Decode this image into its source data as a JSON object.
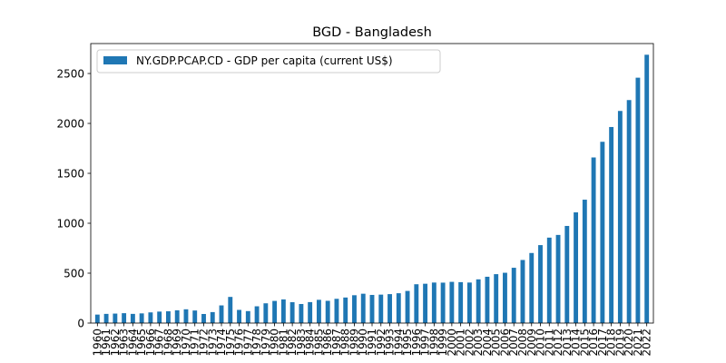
{
  "chart_data": {
    "type": "bar",
    "title": "BGD - Bangladesh",
    "xlabel": "",
    "ylabel": "",
    "ylim": [
      0,
      2800
    ],
    "yticks": [
      0,
      500,
      1000,
      1500,
      2000,
      2500
    ],
    "grid": false,
    "legend": "upper-left",
    "categories": [
      "1960",
      "1961",
      "1962",
      "1963",
      "1964",
      "1965",
      "1966",
      "1967",
      "1968",
      "1969",
      "1970",
      "1971",
      "1972",
      "1973",
      "1974",
      "1975",
      "1976",
      "1977",
      "1978",
      "1979",
      "1980",
      "1981",
      "1982",
      "1983",
      "1984",
      "1985",
      "1986",
      "1987",
      "1988",
      "1989",
      "1990",
      "1991",
      "1992",
      "1993",
      "1994",
      "1995",
      "1996",
      "1997",
      "1998",
      "1999",
      "2000",
      "2001",
      "2002",
      "2003",
      "2004",
      "2005",
      "2006",
      "2007",
      "2008",
      "2009",
      "2010",
      "2011",
      "2012",
      "2013",
      "2014",
      "2015",
      "2016",
      "2017",
      "2018",
      "2019",
      "2020",
      "2021",
      "2022"
    ],
    "series": [
      {
        "name": "NY.GDP.PCAP.CD - GDP per capita (current US$)",
        "color": "#1f77b4",
        "values": [
          85,
          92,
          95,
          99,
          92,
          97,
          107,
          115,
          118,
          128,
          138,
          126,
          91,
          110,
          177,
          262,
          132,
          120,
          168,
          198,
          222,
          237,
          209,
          191,
          210,
          233,
          223,
          243,
          256,
          279,
          294,
          282,
          285,
          290,
          299,
          322,
          389,
          394,
          406,
          405,
          413,
          410,
          406,
          438,
          464,
          490,
          504,
          554,
          632,
          702,
          781,
          856,
          883,
          973,
          1109,
          1236,
          1659,
          1816,
          1964,
          2125,
          2234,
          2458,
          2688
        ]
      }
    ]
  }
}
